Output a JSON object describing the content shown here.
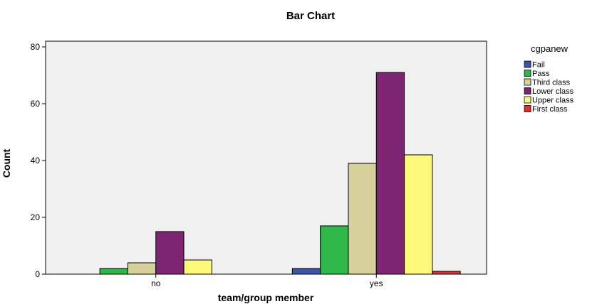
{
  "chart_data": {
    "type": "bar",
    "title": "Bar Chart",
    "xlabel": "team/group member",
    "ylabel": "Count",
    "categories": [
      "no",
      "yes"
    ],
    "ylim": [
      0,
      82
    ],
    "yticks": [
      0,
      20,
      40,
      60,
      80
    ],
    "grid": false,
    "legend_title": "cgpanew",
    "legend_position": "right",
    "series": [
      {
        "name": "Fail",
        "color": "#3b53a8",
        "values": [
          0,
          2
        ]
      },
      {
        "name": "Pass",
        "color": "#2fb84a",
        "values": [
          2,
          17
        ]
      },
      {
        "name": "Third class",
        "color": "#d6d09b",
        "values": [
          4,
          39
        ]
      },
      {
        "name": "Lower class",
        "color": "#7d2473",
        "values": [
          15,
          71
        ]
      },
      {
        "name": "Upper class",
        "color": "#fbf87a",
        "values": [
          5,
          42
        ]
      },
      {
        "name": "First class",
        "color": "#e82b2b",
        "values": [
          0,
          1
        ]
      }
    ]
  }
}
